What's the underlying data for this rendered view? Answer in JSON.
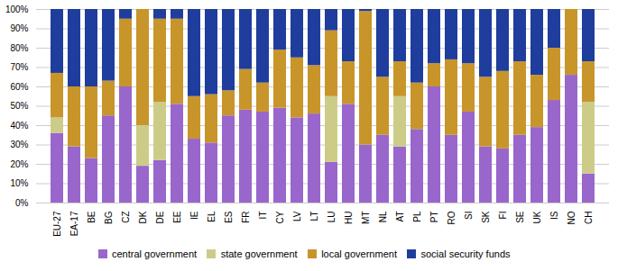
{
  "chart_data": {
    "type": "bar",
    "stacked": true,
    "categories": [
      "EU-27",
      "EA-17",
      "BE",
      "BG",
      "CZ",
      "DK",
      "DE",
      "EE",
      "IE",
      "EL",
      "ES",
      "FR",
      "IT",
      "CY",
      "LV",
      "LT",
      "LU",
      "HU",
      "MT",
      "NL",
      "AT",
      "PL",
      "PT",
      "RO",
      "SI",
      "SK",
      "FI",
      "SE",
      "UK",
      "IS",
      "NO",
      "CH"
    ],
    "series": [
      {
        "name": "central government",
        "color": "#9966cc",
        "values": [
          36,
          29,
          23,
          45,
          60,
          19,
          22,
          51,
          33,
          31,
          45,
          48,
          47,
          49,
          44,
          46,
          21,
          51,
          30,
          35,
          29,
          38,
          60,
          35,
          47,
          29,
          28,
          35,
          39,
          53,
          66,
          15
        ]
      },
      {
        "name": "state government",
        "color": "#cccc88",
        "values": [
          8,
          0,
          0,
          0,
          0,
          21,
          30,
          0,
          0,
          0,
          0,
          0,
          0,
          0,
          0,
          0,
          34,
          0,
          0,
          0,
          26,
          0,
          0,
          0,
          0,
          0,
          0,
          0,
          0,
          0,
          0,
          37
        ]
      },
      {
        "name": "local government",
        "color": "#c8952a",
        "values": [
          23,
          31,
          37,
          18,
          35,
          60,
          43,
          44,
          22,
          25,
          13,
          21,
          15,
          30,
          31,
          25,
          34,
          22,
          69,
          30,
          18,
          24,
          12,
          39,
          25,
          36,
          40,
          38,
          27,
          27,
          34,
          21
        ]
      },
      {
        "name": "social security funds",
        "color": "#1f3d9c",
        "values": [
          33,
          40,
          40,
          37,
          5,
          0,
          5,
          5,
          45,
          44,
          42,
          31,
          38,
          21,
          25,
          29,
          11,
          27,
          1,
          35,
          27,
          38,
          28,
          26,
          28,
          35,
          32,
          27,
          34,
          20,
          0,
          27
        ]
      }
    ],
    "ylim": [
      0,
      100
    ],
    "yticks": [
      {
        "value": 0,
        "label": "0%"
      },
      {
        "value": 10,
        "label": "10%"
      },
      {
        "value": 20,
        "label": "20%"
      },
      {
        "value": 30,
        "label": "30%"
      },
      {
        "value": 40,
        "label": "40%"
      },
      {
        "value": 50,
        "label": "50%"
      },
      {
        "value": 60,
        "label": "60%"
      },
      {
        "value": 70,
        "label": "70%"
      },
      {
        "value": 80,
        "label": "80%"
      },
      {
        "value": 90,
        "label": "90%"
      },
      {
        "value": 100,
        "label": "100%"
      }
    ],
    "grid": true,
    "legend": "bottom"
  }
}
